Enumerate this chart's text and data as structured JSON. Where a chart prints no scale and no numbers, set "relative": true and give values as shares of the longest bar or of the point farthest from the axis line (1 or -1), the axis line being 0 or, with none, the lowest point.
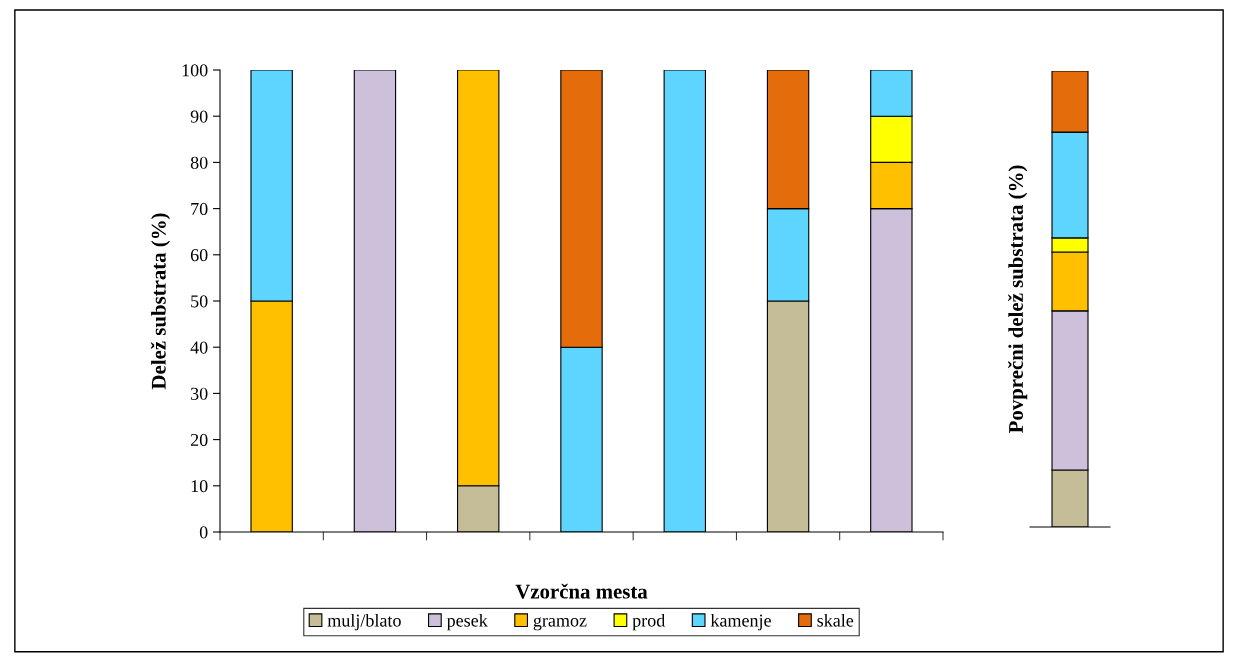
{
  "chart_data": [
    {
      "type": "bar",
      "stacked": true,
      "xlabel": "Vzorčna mesta",
      "ylabel": "Delež substrata (%)",
      "categories": [
        null,
        null,
        null,
        null,
        null,
        null,
        null
      ],
      "ylim": [
        0,
        100
      ],
      "yticks": [
        0,
        10,
        20,
        30,
        40,
        50,
        60,
        70,
        80,
        90,
        100
      ],
      "tick_labels": "y",
      "grid": false,
      "legend": "bottom",
      "series": [
        {
          "name": "mulj/blato",
          "color": "#c4bd97",
          "values": [
            null,
            null,
            10,
            null,
            null,
            50,
            null
          ]
        },
        {
          "name": "pesek",
          "color": "#ccc0da",
          "values": [
            null,
            100,
            null,
            null,
            null,
            null,
            70
          ]
        },
        {
          "name": "gramoz",
          "color": "#ffc000",
          "values": [
            50,
            null,
            90,
            null,
            null,
            null,
            10
          ]
        },
        {
          "name": "prod",
          "color": "#ffff00",
          "values": [
            null,
            null,
            null,
            null,
            null,
            null,
            10
          ]
        },
        {
          "name": "kamenje",
          "color": "#5dd5ff",
          "values": [
            50,
            null,
            null,
            40,
            100,
            20,
            10
          ]
        },
        {
          "name": "skale",
          "color": "#e46c0a",
          "values": [
            null,
            null,
            null,
            60,
            null,
            30,
            null
          ]
        }
      ]
    },
    {
      "type": "bar",
      "stacked": true,
      "relative": true,
      "ylabel": "Povprečni delež substrata (%)",
      "categories": [
        null
      ],
      "tick_labels": false,
      "legend": false,
      "series": [
        {
          "color": "#c4bd97",
          "values": [
            0.125
          ]
        },
        {
          "color": "#ccc0da",
          "values": [
            0.349
          ]
        },
        {
          "color": "#ffc000",
          "values": [
            0.129
          ]
        },
        {
          "color": "#ffff00",
          "values": [
            0.031
          ]
        },
        {
          "color": "#5dd5ff",
          "values": [
            0.232
          ]
        },
        {
          "color": "#e46c0a",
          "values": [
            0.134
          ]
        }
      ]
    }
  ]
}
